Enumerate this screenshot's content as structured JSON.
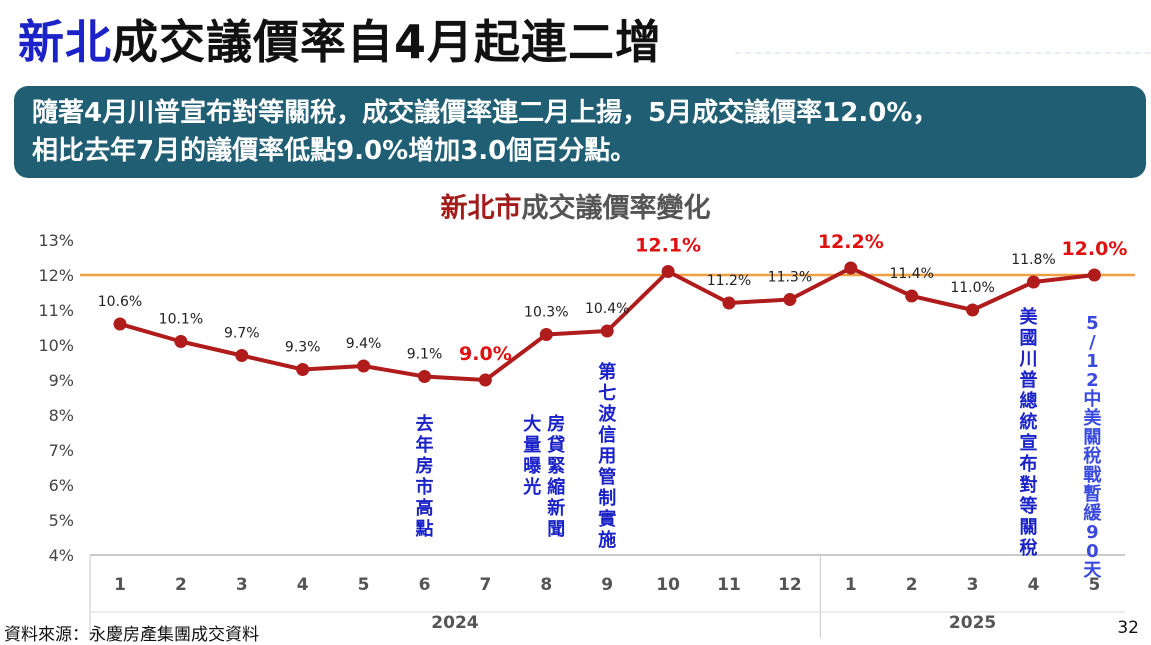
{
  "title": {
    "highlight": "新北",
    "rest": "成交議價率自4月起連二增"
  },
  "summary": {
    "line1": "隨著4月川普宣布對等關稅，成交議價率連二月上揚，5月成交議價率12.0%，",
    "line2": "相比去年7月的議價率低點9.0%增加3.0個百分點。"
  },
  "chart_title": {
    "highlight": "新北市",
    "rest": "成交議價率變化"
  },
  "chart_data": {
    "type": "line",
    "title": "新北市成交議價率變化",
    "categories": [
      "1",
      "2",
      "3",
      "4",
      "5",
      "6",
      "7",
      "8",
      "9",
      "10",
      "11",
      "12",
      "1",
      "2",
      "3",
      "4",
      "5"
    ],
    "groups": [
      {
        "label": "2024",
        "count": 12
      },
      {
        "label": "2025",
        "count": 5
      }
    ],
    "series": [
      {
        "values": [
          10.6,
          10.1,
          9.7,
          9.3,
          9.4,
          9.1,
          9.0,
          10.3,
          10.4,
          12.1,
          11.2,
          11.3,
          12.2,
          11.4,
          11.0,
          11.8,
          12.0
        ]
      }
    ],
    "data_labels": [
      "10.6%",
      "10.1%",
      "9.7%",
      "9.3%",
      "9.4%",
      "9.1%",
      "9.0%",
      "10.3%",
      "10.4%",
      "12.1%",
      "11.2%",
      "11.3%",
      "12.2%",
      "11.4%",
      "11.0%",
      "11.8%",
      "12.0%"
    ],
    "highlighted_indices": [
      6,
      9,
      12,
      16
    ],
    "y_ticks": [
      "13%",
      "12%",
      "11%",
      "10%",
      "9%",
      "8%",
      "7%",
      "6%",
      "5%",
      "4%"
    ],
    "ylim": [
      4,
      13
    ],
    "reference_line": 12.0,
    "annotations": [
      {
        "index": 5,
        "text": "去年房市高點"
      },
      {
        "index": 7,
        "text": "房貸緊縮新聞"
      },
      {
        "index": 7,
        "text": "大量曝光"
      },
      {
        "index": 8,
        "text": "第七波信用管制實施"
      },
      {
        "index": 15,
        "text": "美國川普總統宣布對等關稅"
      },
      {
        "index": 16,
        "text": "5/12 中美關稅戰暫緩90天"
      }
    ],
    "colors": {
      "line": "#b01c1c",
      "reference": "#f0a040",
      "highlight_label": "#e01010",
      "annotation": "#1a22c8",
      "annotation_light": "#3a4ae0"
    }
  },
  "footer": {
    "source": "資料來源：永慶房產集團成交資料",
    "page": "32"
  }
}
